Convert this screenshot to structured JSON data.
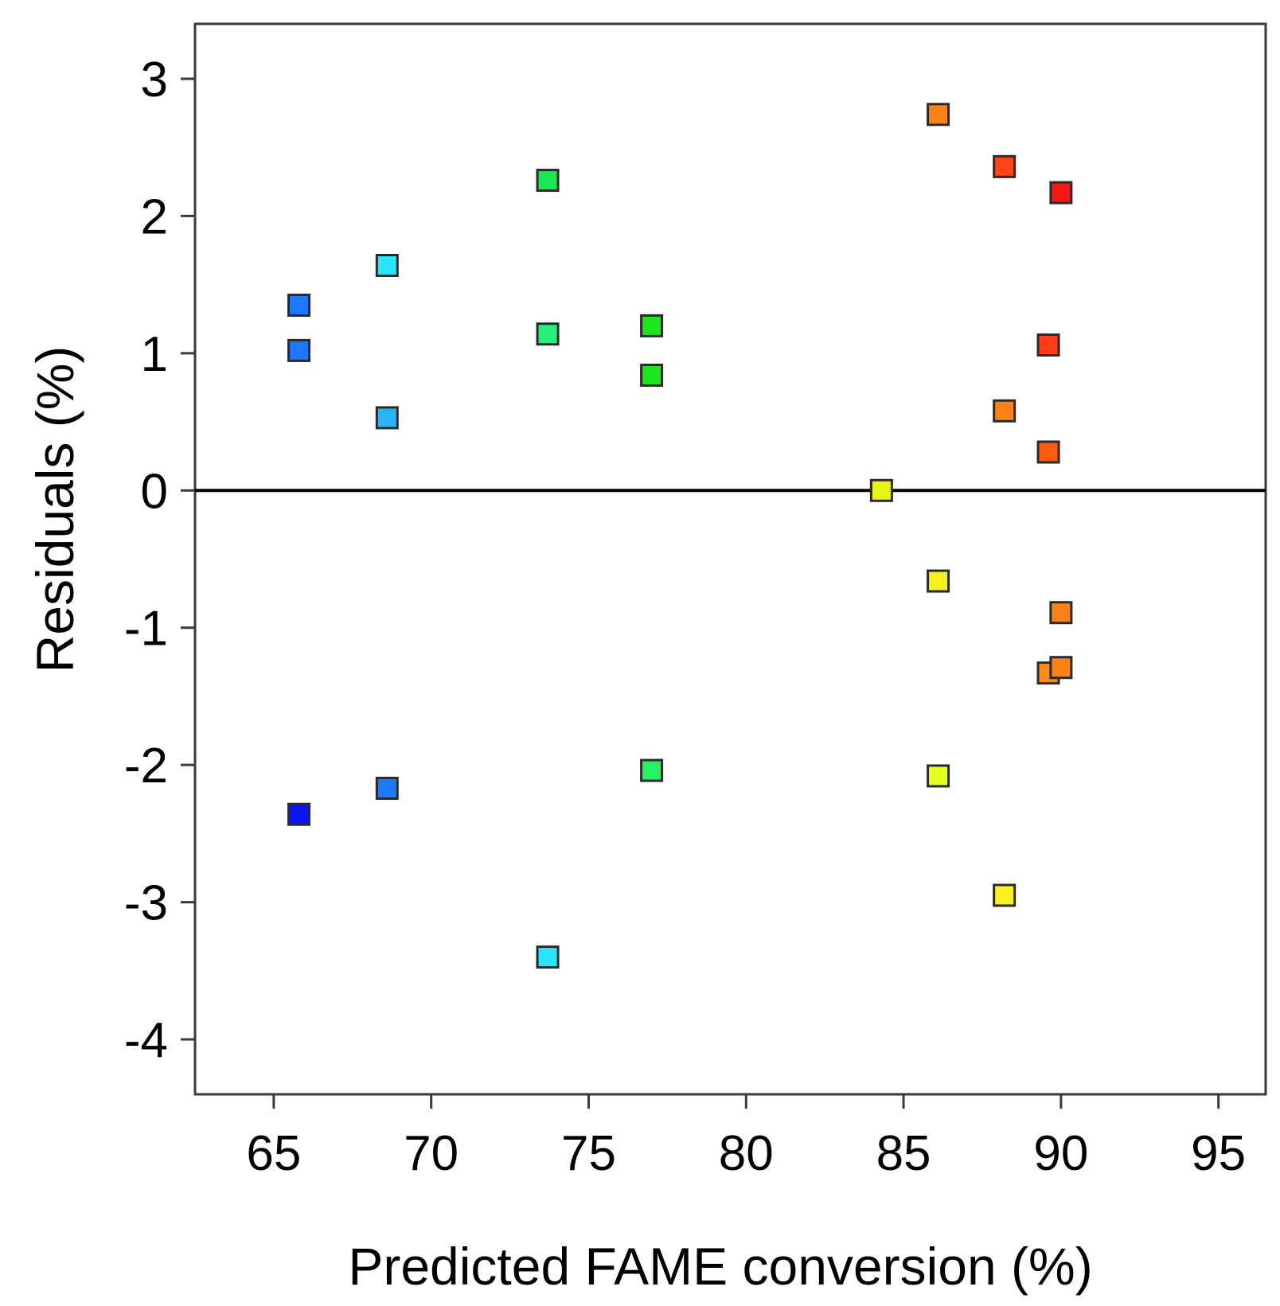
{
  "chart_data": {
    "type": "scatter",
    "title": "",
    "xlabel": "Predicted FAME conversion (%)",
    "ylabel": "Residuals (%)",
    "xlim": [
      62.5,
      96.5
    ],
    "ylim": [
      -4.4,
      3.4
    ],
    "xticks": [
      65,
      70,
      75,
      80,
      85,
      90,
      95
    ],
    "yticks": [
      3,
      2,
      1,
      0,
      -1,
      -2,
      -3,
      -4
    ],
    "xtick_labels": [
      "65",
      "70",
      "75",
      "80",
      "85",
      "90",
      "95"
    ],
    "ytick_labels": [
      "3",
      "2",
      "1",
      "0",
      "-1",
      "-2",
      "-3",
      "-4"
    ],
    "reference_line_y": 0,
    "grid": false,
    "marker": "square",
    "points": [
      {
        "x": 65.8,
        "y": 1.35,
        "color": "#1e78ff"
      },
      {
        "x": 65.8,
        "y": 1.02,
        "color": "#1e78ff"
      },
      {
        "x": 65.8,
        "y": -2.36,
        "color": "#0a14f0"
      },
      {
        "x": 68.6,
        "y": 1.64,
        "color": "#28e6ff"
      },
      {
        "x": 68.6,
        "y": 0.53,
        "color": "#28b4ff"
      },
      {
        "x": 68.6,
        "y": -2.17,
        "color": "#1e78ff"
      },
      {
        "x": 73.7,
        "y": 2.26,
        "color": "#19e650"
      },
      {
        "x": 73.7,
        "y": 1.14,
        "color": "#28f078"
      },
      {
        "x": 73.7,
        "y": -3.4,
        "color": "#28e6ff"
      },
      {
        "x": 77.0,
        "y": 1.2,
        "color": "#1ee61e"
      },
      {
        "x": 77.0,
        "y": 0.84,
        "color": "#1ee61e"
      },
      {
        "x": 77.0,
        "y": -2.04,
        "color": "#28f064"
      },
      {
        "x": 84.3,
        "y": 0.0,
        "color": "#e6f514"
      },
      {
        "x": 86.1,
        "y": 2.74,
        "color": "#ff8214"
      },
      {
        "x": 86.1,
        "y": -0.66,
        "color": "#f5f01e"
      },
      {
        "x": 86.1,
        "y": -2.08,
        "color": "#e6ff1e"
      },
      {
        "x": 88.2,
        "y": 2.36,
        "color": "#ff4614"
      },
      {
        "x": 88.2,
        "y": 0.58,
        "color": "#ff8214"
      },
      {
        "x": 88.2,
        "y": -2.95,
        "color": "#fff01e"
      },
      {
        "x": 89.6,
        "y": 1.06,
        "color": "#ff3c14"
      },
      {
        "x": 89.6,
        "y": 0.28,
        "color": "#ff5a14"
      },
      {
        "x": 89.6,
        "y": -1.33,
        "color": "#ff8c14"
      },
      {
        "x": 90.0,
        "y": 2.17,
        "color": "#ff1414"
      },
      {
        "x": 90.0,
        "y": -0.89,
        "color": "#ff8214"
      },
      {
        "x": 90.0,
        "y": -1.29,
        "color": "#ff8214"
      }
    ]
  }
}
